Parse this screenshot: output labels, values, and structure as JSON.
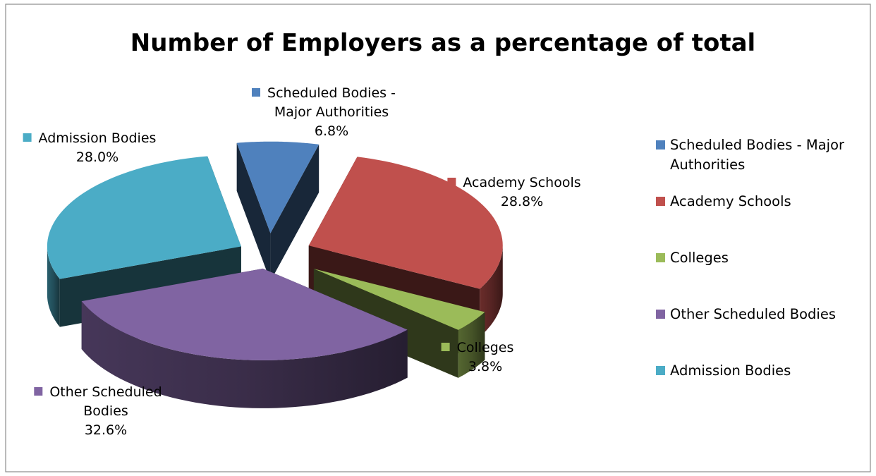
{
  "chart_data": {
    "type": "pie",
    "title": "Number of Employers as a percentage of total",
    "categories": [
      "Scheduled Bodies - Major Authorities",
      "Academy Schools",
      "Colleges",
      "Other Scheduled Bodies",
      "Admission Bodies"
    ],
    "values": [
      6.8,
      28.8,
      3.8,
      32.6,
      28.0
    ],
    "value_format": "percent",
    "value_labels": [
      "6.8%",
      "28.8%",
      "3.8%",
      "32.6%",
      "28.0%"
    ],
    "colors": [
      "#4f81bd",
      "#c0504d",
      "#9bbb59",
      "#8064a2",
      "#4bacc6"
    ],
    "data_labels": [
      {
        "name_lines": [
          "Scheduled Bodies -",
          "Major Authorities"
        ],
        "value": "6.8%"
      },
      {
        "name_lines": [
          "Academy Schools"
        ],
        "value": "28.8%"
      },
      {
        "name_lines": [
          "Colleges"
        ],
        "value": "3.8%"
      },
      {
        "name_lines": [
          "Other Scheduled",
          "Bodies"
        ],
        "value": "32.6%"
      },
      {
        "name_lines": [
          "Admission Bodies"
        ],
        "value": "28.0%"
      }
    ],
    "legend": {
      "position": "right",
      "items": [
        {
          "label_lines": [
            "Scheduled Bodies - Major",
            "Authorities"
          ],
          "color": "#4f81bd"
        },
        {
          "label_lines": [
            "Academy Schools"
          ],
          "color": "#c0504d"
        },
        {
          "label_lines": [
            "Colleges"
          ],
          "color": "#9bbb59"
        },
        {
          "label_lines": [
            "Other Scheduled Bodies"
          ],
          "color": "#8064a2"
        },
        {
          "label_lines": [
            "Admission Bodies"
          ],
          "color": "#4bacc6"
        }
      ]
    },
    "style": "3d-exploded-pie"
  }
}
